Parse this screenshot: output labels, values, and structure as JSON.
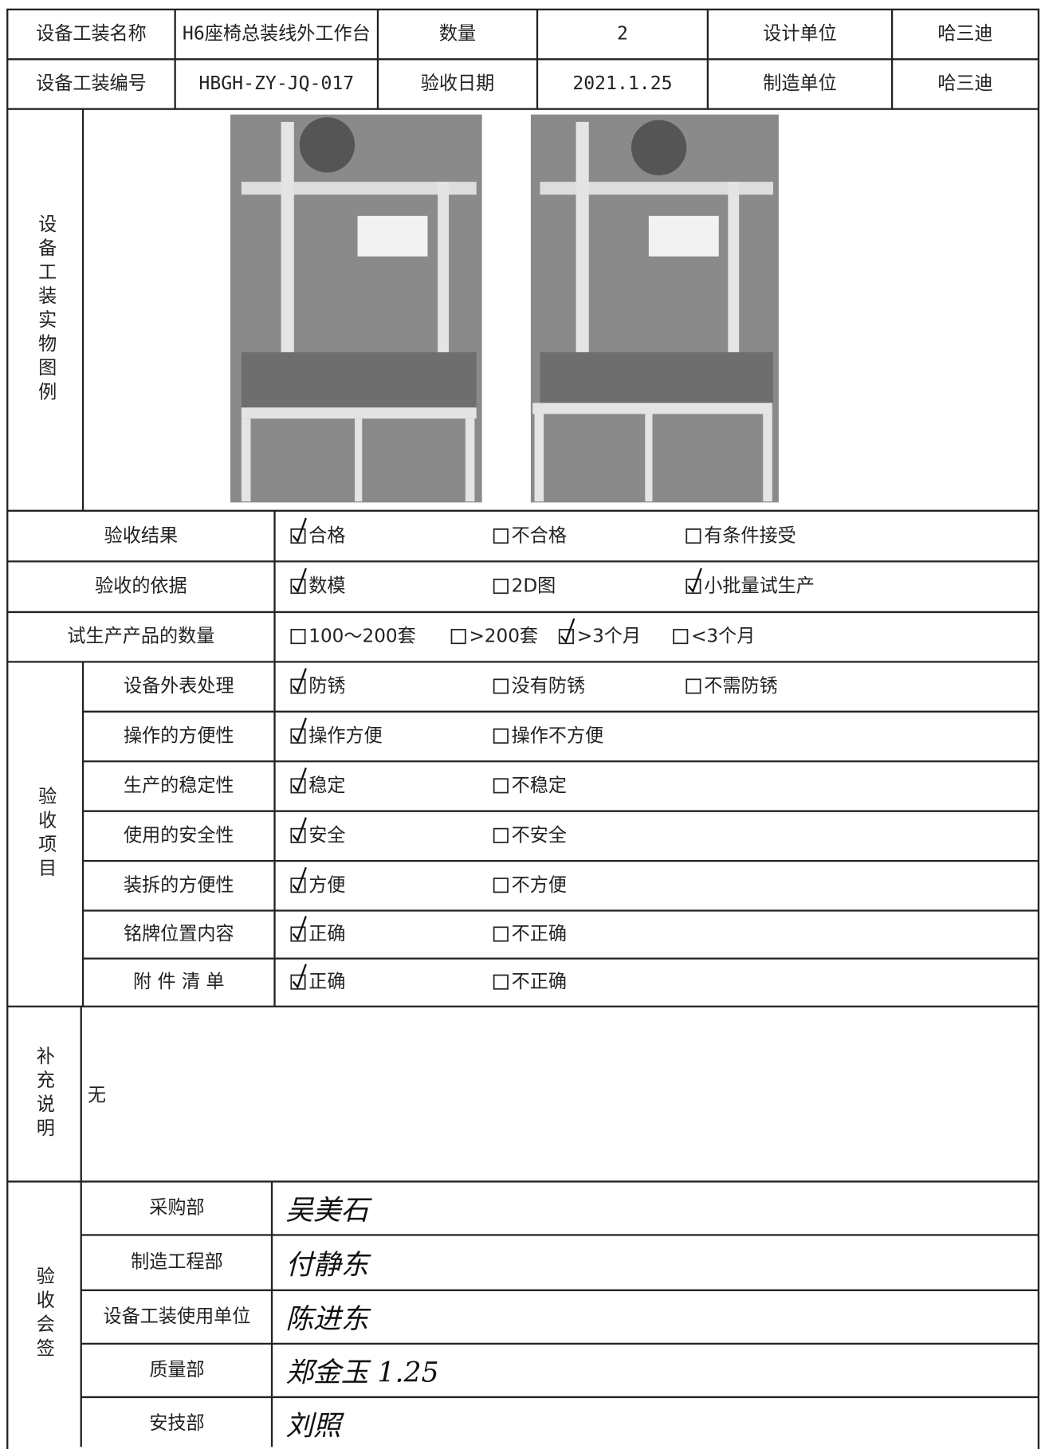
{
  "header": {
    "rows": [
      [
        "设备工装名称",
        "H6座椅总装线外工作台",
        "数量",
        "2",
        "设计单位",
        "哈三迪"
      ],
      [
        "设备工装编号",
        "HBGH-ZY-JQ-017",
        "验收日期",
        "2021.1.25",
        "制造单位",
        "哈三迪"
      ]
    ]
  },
  "photos": {
    "label": "设备工装实物图例"
  },
  "acceptance": [
    {
      "label": "验收结果",
      "options": [
        {
          "text": "合格",
          "checked": true
        },
        {
          "text": "不合格",
          "checked": false
        },
        {
          "text": "有条件接受",
          "checked": false
        }
      ]
    },
    {
      "label": "验收的依据",
      "options": [
        {
          "text": "数模",
          "checked": true
        },
        {
          "text": "2D图",
          "checked": false
        },
        {
          "text": "小批量试生产",
          "checked": true
        }
      ]
    },
    {
      "label": "试生产产品的数量",
      "options": [
        {
          "text": "100～200套",
          "checked": false
        },
        {
          "text": ">200套",
          "checked": false
        },
        {
          "text": ">3个月",
          "checked": true
        },
        {
          "text": "<3个月",
          "checked": false
        }
      ]
    }
  ],
  "inspection": {
    "label": "验收项目",
    "items": [
      {
        "label": "设备外表处理",
        "options": [
          {
            "text": "防锈",
            "checked": true
          },
          {
            "text": "没有防锈",
            "checked": false
          },
          {
            "text": "不需防锈",
            "checked": false
          }
        ]
      },
      {
        "label": "操作的方便性",
        "options": [
          {
            "text": "操作方便",
            "checked": true
          },
          {
            "text": "操作不方便",
            "checked": false
          }
        ]
      },
      {
        "label": "生产的稳定性",
        "options": [
          {
            "text": "稳定",
            "checked": true
          },
          {
            "text": "不稳定",
            "checked": false
          }
        ]
      },
      {
        "label": "使用的安全性",
        "options": [
          {
            "text": "安全",
            "checked": true
          },
          {
            "text": "不安全",
            "checked": false
          }
        ]
      },
      {
        "label": "装拆的方便性",
        "options": [
          {
            "text": "方便",
            "checked": true
          },
          {
            "text": "不方便",
            "checked": false
          }
        ]
      },
      {
        "label": "铭牌位置内容",
        "options": [
          {
            "text": "正确",
            "checked": true
          },
          {
            "text": "不正确",
            "checked": false
          }
        ]
      },
      {
        "label": "附 件 清 单",
        "options": [
          {
            "text": "正确",
            "checked": true
          },
          {
            "text": "不正确",
            "checked": false
          }
        ]
      }
    ]
  },
  "supplement": {
    "label": "补充说明",
    "text": "无"
  },
  "signoff": {
    "label": "验收会签",
    "rows": [
      {
        "dept": "采购部",
        "signature": "吴美石"
      },
      {
        "dept": "制造工程部",
        "signature": "付静东"
      },
      {
        "dept": "设备工装使用单位",
        "signature": "陈进东"
      },
      {
        "dept": "质量部",
        "signature": "郑金玉 1.25"
      },
      {
        "dept": "安技部",
        "signature": "刘照"
      }
    ]
  }
}
